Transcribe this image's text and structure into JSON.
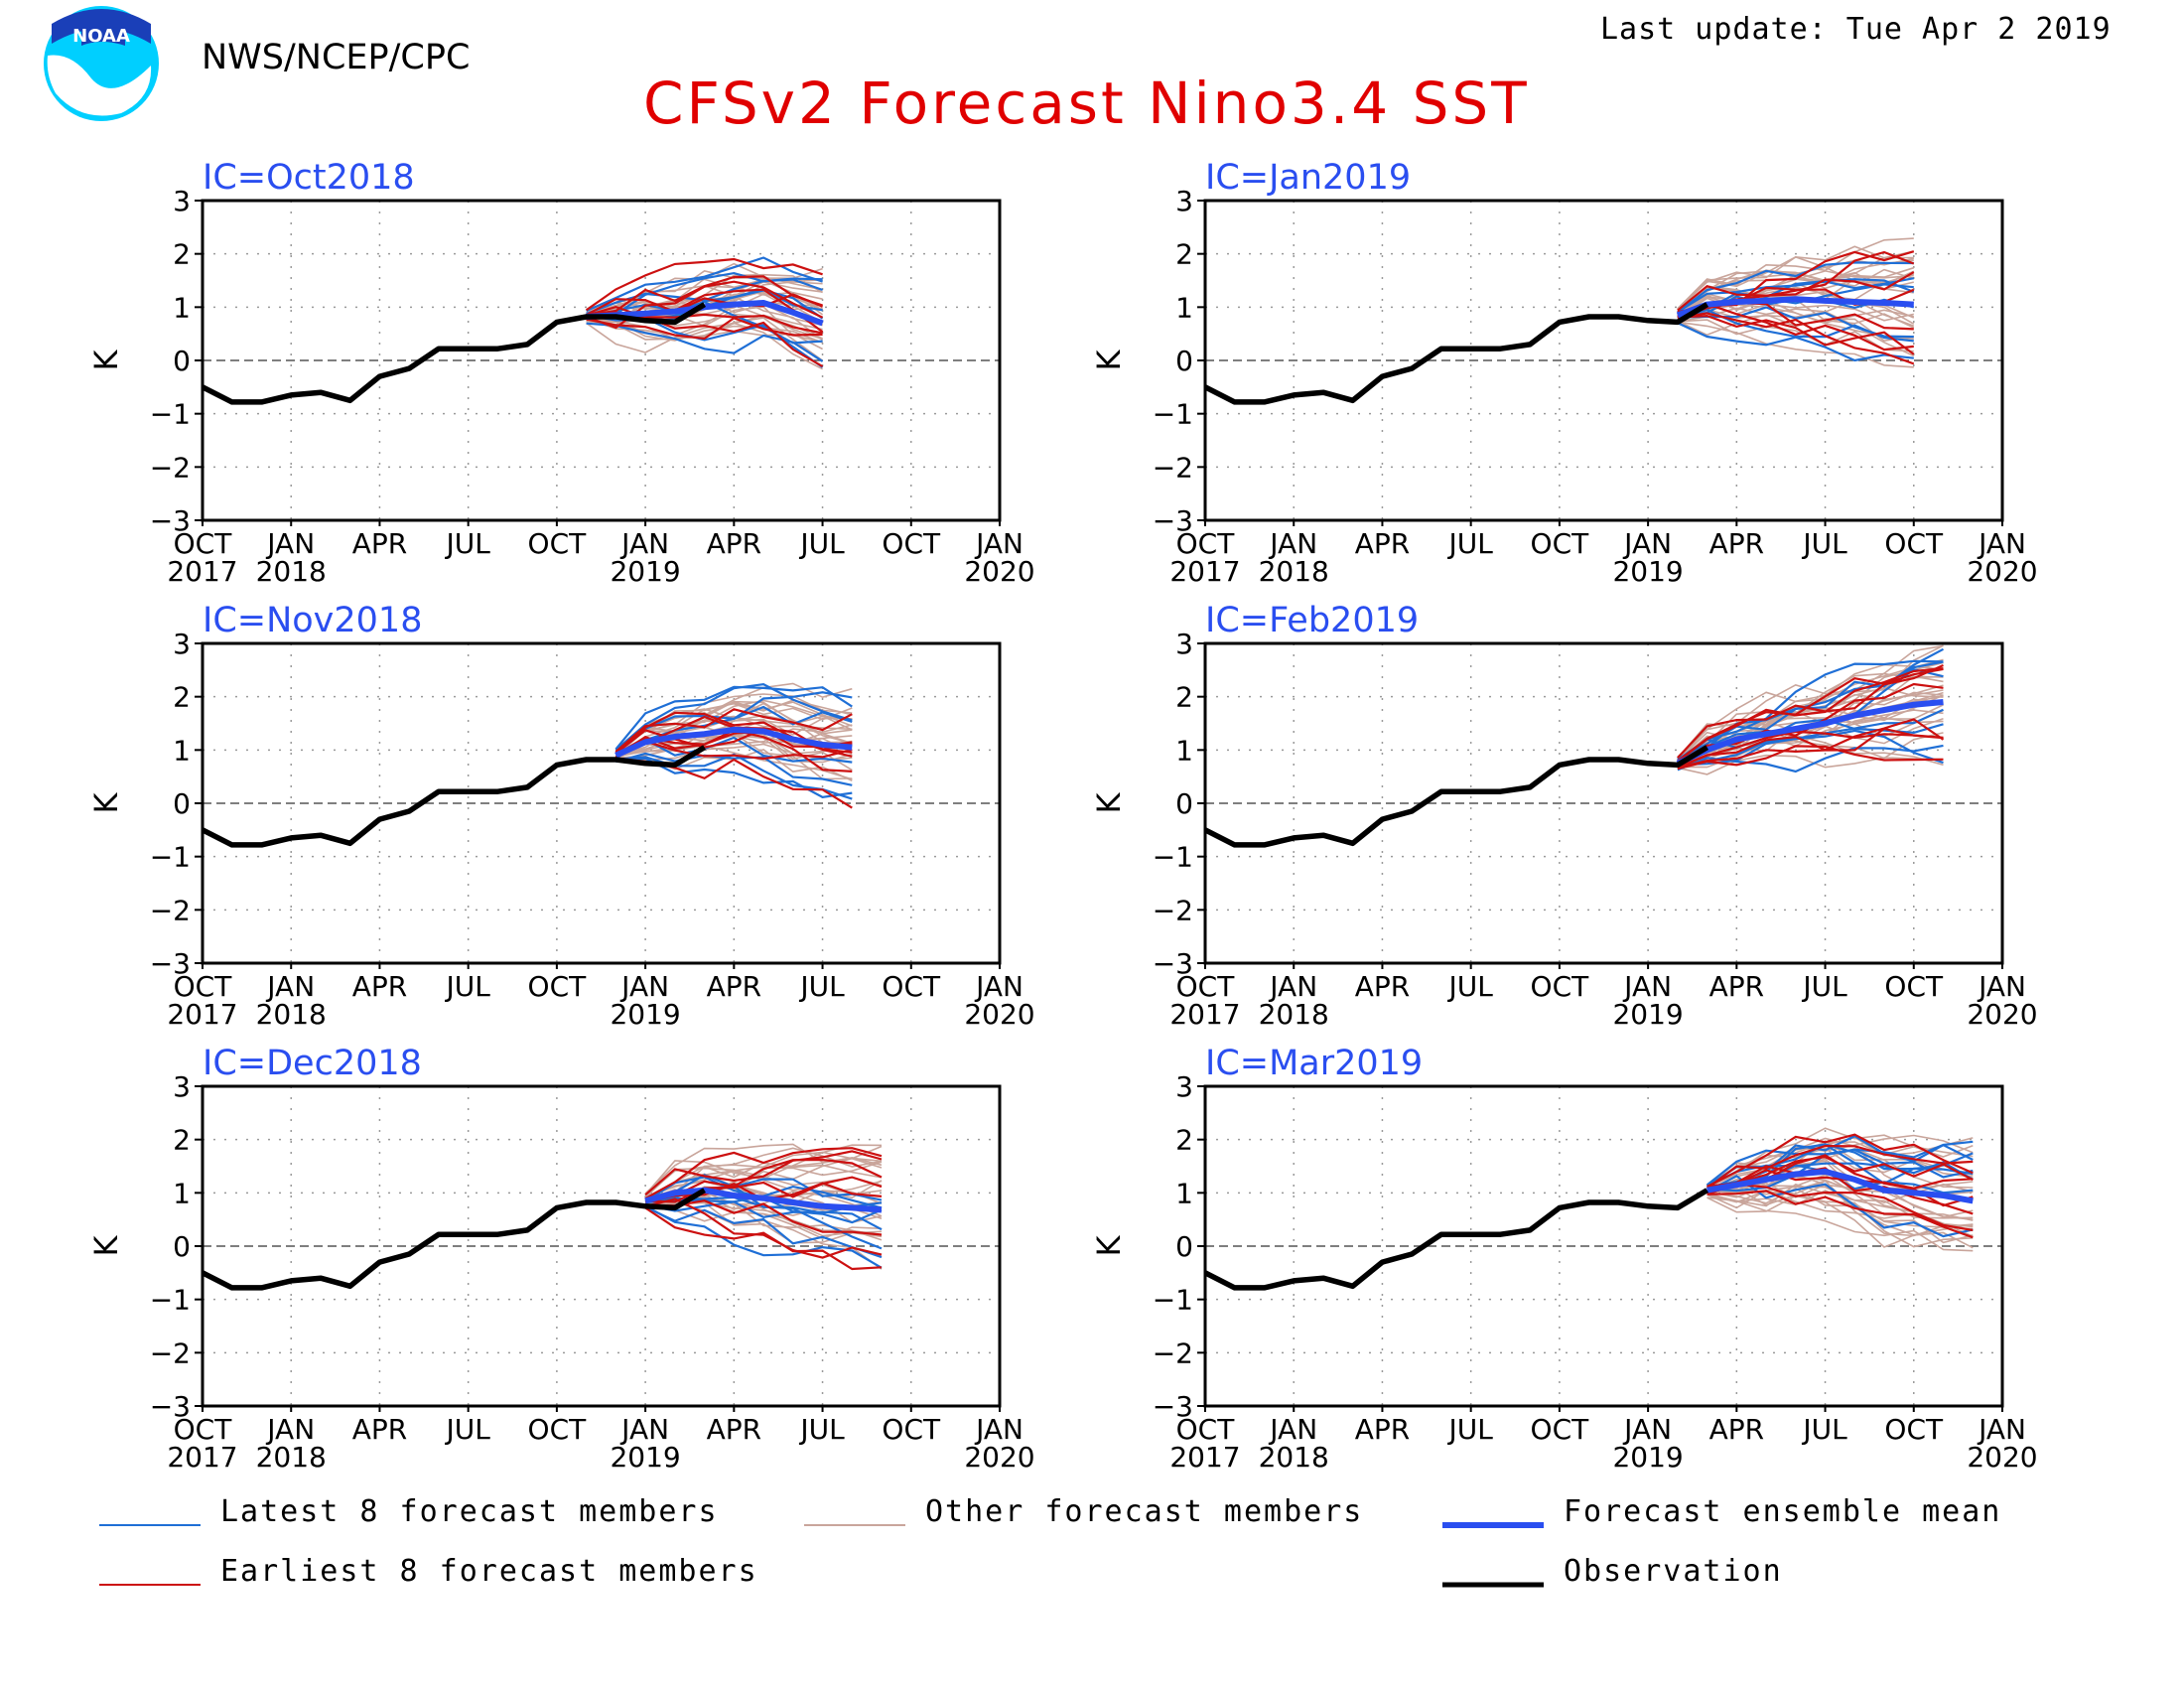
{
  "header": {
    "org": "NWS/NCEP/CPC",
    "last_update": "Last update: Tue Apr 2 2019",
    "title": "CFSv2 Forecast Nino3.4 SST",
    "logo_text": "NOAA"
  },
  "colors": {
    "latest": "#1f6fd6",
    "earliest": "#cc1010",
    "other": "#c9a59b",
    "mean": "#2a4ef0",
    "observation": "#000000",
    "title": "#e00000",
    "ic_label": "#2a4ef0"
  },
  "legend": [
    {
      "key": "latest",
      "label": "Latest 8 forecast members"
    },
    {
      "key": "other",
      "label": "Other forecast members"
    },
    {
      "key": "mean",
      "label": "Forecast ensemble mean"
    },
    {
      "key": "earliest",
      "label": "Earliest 8 forecast members"
    },
    {
      "key": "observation",
      "label": "Observation"
    }
  ],
  "chart_data": [
    {
      "type": "line",
      "title": "IC=Oct2018",
      "ylabel": "K",
      "ylim": [
        -3,
        3
      ],
      "xlim": [
        "2017-10",
        "2020-01"
      ],
      "yticks": [
        "3",
        "2",
        "1",
        "0",
        "−1",
        "−2",
        "−3"
      ],
      "xticks": [
        [
          "OCT",
          "2017"
        ],
        [
          "JAN",
          "2018"
        ],
        [
          "APR",
          ""
        ],
        [
          "JUL",
          ""
        ],
        [
          "OCT",
          ""
        ],
        [
          "JAN",
          "2019"
        ],
        [
          "APR",
          ""
        ],
        [
          "JUL",
          ""
        ],
        [
          "OCT",
          ""
        ],
        [
          "JAN",
          "2020"
        ]
      ],
      "observation": {
        "x": [
          "2017-10",
          "2017-11",
          "2017-12",
          "2018-01",
          "2018-02",
          "2018-03",
          "2018-04",
          "2018-05",
          "2018-06",
          "2018-07",
          "2018-08",
          "2018-09",
          "2018-10",
          "2018-11",
          "2018-12",
          "2019-01",
          "2019-02",
          "2019-03"
        ],
        "y": [
          -0.5,
          -0.78,
          -0.78,
          -0.65,
          -0.6,
          -0.75,
          -0.3,
          -0.15,
          0.22,
          0.22,
          0.22,
          0.3,
          0.72,
          0.82,
          0.82,
          0.75,
          0.72,
          1.05
        ]
      },
      "forecast_start": "2018-11",
      "forecast_end": "2019-07",
      "ensemble_mean": [
        0.82,
        0.85,
        0.88,
        0.92,
        1.0,
        1.05,
        1.08,
        0.9,
        0.7
      ],
      "member_spread": [
        0.1,
        0.3,
        0.45,
        0.5,
        0.55,
        0.6,
        0.7,
        0.8,
        0.95
      ]
    },
    {
      "type": "line",
      "title": "IC=Nov2018",
      "ylabel": "K",
      "ylim": [
        -3,
        3
      ],
      "xlim": [
        "2017-10",
        "2020-01"
      ],
      "yticks": [
        "3",
        "2",
        "1",
        "0",
        "−1",
        "−2",
        "−3"
      ],
      "xticks": [
        [
          "OCT",
          "2017"
        ],
        [
          "JAN",
          "2018"
        ],
        [
          "APR",
          ""
        ],
        [
          "JUL",
          ""
        ],
        [
          "OCT",
          ""
        ],
        [
          "JAN",
          "2019"
        ],
        [
          "APR",
          ""
        ],
        [
          "JUL",
          ""
        ],
        [
          "OCT",
          ""
        ],
        [
          "JAN",
          "2020"
        ]
      ],
      "observation": {
        "x": [
          "2017-10",
          "2017-11",
          "2017-12",
          "2018-01",
          "2018-02",
          "2018-03",
          "2018-04",
          "2018-05",
          "2018-06",
          "2018-07",
          "2018-08",
          "2018-09",
          "2018-10",
          "2018-11",
          "2018-12",
          "2019-01",
          "2019-02",
          "2019-03"
        ],
        "y": [
          -0.5,
          -0.78,
          -0.78,
          -0.65,
          -0.6,
          -0.75,
          -0.3,
          -0.15,
          0.22,
          0.22,
          0.22,
          0.3,
          0.72,
          0.82,
          0.82,
          0.75,
          0.72,
          1.05
        ]
      },
      "forecast_start": "2018-12",
      "forecast_end": "2019-08",
      "ensemble_mean": [
        0.9,
        1.15,
        1.25,
        1.3,
        1.38,
        1.35,
        1.2,
        1.1,
        1.05
      ],
      "member_spread": [
        0.1,
        0.3,
        0.45,
        0.55,
        0.6,
        0.65,
        0.75,
        0.85,
        0.95
      ]
    },
    {
      "type": "line",
      "title": "IC=Dec2018",
      "ylabel": "K",
      "ylim": [
        -3,
        3
      ],
      "xlim": [
        "2017-10",
        "2020-01"
      ],
      "yticks": [
        "3",
        "2",
        "1",
        "0",
        "−1",
        "−2",
        "−3"
      ],
      "xticks": [
        [
          "OCT",
          "2017"
        ],
        [
          "JAN",
          "2018"
        ],
        [
          "APR",
          ""
        ],
        [
          "JUL",
          ""
        ],
        [
          "OCT",
          ""
        ],
        [
          "JAN",
          "2019"
        ],
        [
          "APR",
          ""
        ],
        [
          "JUL",
          ""
        ],
        [
          "OCT",
          ""
        ],
        [
          "JAN",
          "2020"
        ]
      ],
      "observation": {
        "x": [
          "2017-10",
          "2017-11",
          "2017-12",
          "2018-01",
          "2018-02",
          "2018-03",
          "2018-04",
          "2018-05",
          "2018-06",
          "2018-07",
          "2018-08",
          "2018-09",
          "2018-10",
          "2018-11",
          "2018-12",
          "2019-01",
          "2019-02",
          "2019-03"
        ],
        "y": [
          -0.5,
          -0.78,
          -0.78,
          -0.65,
          -0.6,
          -0.75,
          -0.3,
          -0.15,
          0.22,
          0.22,
          0.22,
          0.3,
          0.72,
          0.82,
          0.82,
          0.75,
          0.72,
          1.05
        ]
      },
      "forecast_start": "2019-01",
      "forecast_end": "2019-09",
      "ensemble_mean": [
        0.85,
        1.0,
        1.05,
        0.95,
        0.9,
        0.82,
        0.75,
        0.72,
        0.68
      ],
      "member_spread": [
        0.1,
        0.35,
        0.5,
        0.6,
        0.7,
        0.8,
        0.9,
        1.0,
        1.1
      ]
    },
    {
      "type": "line",
      "title": "IC=Jan2019",
      "ylabel": "K",
      "ylim": [
        -3,
        3
      ],
      "xlim": [
        "2017-10",
        "2020-01"
      ],
      "yticks": [
        "3",
        "2",
        "1",
        "0",
        "−1",
        "−2",
        "−3"
      ],
      "xticks": [
        [
          "OCT",
          "2017"
        ],
        [
          "JAN",
          "2018"
        ],
        [
          "APR",
          ""
        ],
        [
          "JUL",
          ""
        ],
        [
          "OCT",
          ""
        ],
        [
          "JAN",
          "2019"
        ],
        [
          "APR",
          ""
        ],
        [
          "JUL",
          ""
        ],
        [
          "OCT",
          ""
        ],
        [
          "JAN",
          "2020"
        ]
      ],
      "observation": {
        "x": [
          "2017-10",
          "2017-11",
          "2017-12",
          "2018-01",
          "2018-02",
          "2018-03",
          "2018-04",
          "2018-05",
          "2018-06",
          "2018-07",
          "2018-08",
          "2018-09",
          "2018-10",
          "2018-11",
          "2018-12",
          "2019-01",
          "2019-02",
          "2019-03"
        ],
        "y": [
          -0.5,
          -0.78,
          -0.78,
          -0.65,
          -0.6,
          -0.75,
          -0.3,
          -0.15,
          0.22,
          0.22,
          0.22,
          0.3,
          0.72,
          0.82,
          0.82,
          0.75,
          0.72,
          1.05
        ]
      },
      "forecast_start": "2019-02",
      "forecast_end": "2019-10",
      "ensemble_mean": [
        0.85,
        1.05,
        1.1,
        1.12,
        1.15,
        1.12,
        1.1,
        1.08,
        1.05
      ],
      "member_spread": [
        0.1,
        0.3,
        0.45,
        0.55,
        0.65,
        0.75,
        0.85,
        0.95,
        1.05
      ]
    },
    {
      "type": "line",
      "title": "IC=Feb2019",
      "ylabel": "K",
      "ylim": [
        -3,
        3
      ],
      "xlim": [
        "2017-10",
        "2020-01"
      ],
      "yticks": [
        "3",
        "2",
        "1",
        "0",
        "−1",
        "−2",
        "−3"
      ],
      "xticks": [
        [
          "OCT",
          "2017"
        ],
        [
          "JAN",
          "2018"
        ],
        [
          "APR",
          ""
        ],
        [
          "JUL",
          ""
        ],
        [
          "OCT",
          ""
        ],
        [
          "JAN",
          "2019"
        ],
        [
          "APR",
          ""
        ],
        [
          "JUL",
          ""
        ],
        [
          "OCT",
          ""
        ],
        [
          "JAN",
          "2020"
        ]
      ],
      "observation": {
        "x": [
          "2017-10",
          "2017-11",
          "2017-12",
          "2018-01",
          "2018-02",
          "2018-03",
          "2018-04",
          "2018-05",
          "2018-06",
          "2018-07",
          "2018-08",
          "2018-09",
          "2018-10",
          "2018-11",
          "2018-12",
          "2019-01",
          "2019-02",
          "2019-03"
        ],
        "y": [
          -0.5,
          -0.78,
          -0.78,
          -0.65,
          -0.6,
          -0.75,
          -0.3,
          -0.15,
          0.22,
          0.22,
          0.22,
          0.3,
          0.72,
          0.82,
          0.82,
          0.75,
          0.72,
          1.05
        ]
      },
      "forecast_start": "2019-02",
      "forecast_end": "2019-11",
      "ensemble_mean": [
        0.75,
        1.0,
        1.2,
        1.3,
        1.4,
        1.5,
        1.65,
        1.75,
        1.85,
        1.9
      ],
      "member_spread": [
        0.1,
        0.25,
        0.35,
        0.45,
        0.55,
        0.65,
        0.75,
        0.85,
        0.95,
        1.0
      ]
    },
    {
      "type": "line",
      "title": "IC=Mar2019",
      "ylabel": "K",
      "ylim": [
        -3,
        3
      ],
      "xlim": [
        "2017-10",
        "2020-01"
      ],
      "yticks": [
        "3",
        "2",
        "1",
        "0",
        "−1",
        "−2",
        "−3"
      ],
      "xticks": [
        [
          "OCT",
          "2017"
        ],
        [
          "JAN",
          "2018"
        ],
        [
          "APR",
          ""
        ],
        [
          "JUL",
          ""
        ],
        [
          "OCT",
          ""
        ],
        [
          "JAN",
          "2019"
        ],
        [
          "APR",
          ""
        ],
        [
          "JUL",
          ""
        ],
        [
          "OCT",
          ""
        ],
        [
          "JAN",
          "2020"
        ]
      ],
      "observation": {
        "x": [
          "2017-10",
          "2017-11",
          "2017-12",
          "2018-01",
          "2018-02",
          "2018-03",
          "2018-04",
          "2018-05",
          "2018-06",
          "2018-07",
          "2018-08",
          "2018-09",
          "2018-10",
          "2018-11",
          "2018-12",
          "2019-01",
          "2019-02",
          "2019-03"
        ],
        "y": [
          -0.5,
          -0.78,
          -0.78,
          -0.65,
          -0.6,
          -0.75,
          -0.3,
          -0.15,
          0.22,
          0.22,
          0.22,
          0.3,
          0.72,
          0.82,
          0.82,
          0.75,
          0.72,
          1.05
        ]
      },
      "forecast_start": "2019-03",
      "forecast_end": "2019-12",
      "ensemble_mean": [
        1.05,
        1.15,
        1.25,
        1.35,
        1.4,
        1.25,
        1.05,
        1.0,
        0.95,
        0.85
      ],
      "member_spread": [
        0.1,
        0.3,
        0.45,
        0.55,
        0.65,
        0.75,
        0.85,
        0.9,
        0.95,
        1.0
      ]
    }
  ]
}
